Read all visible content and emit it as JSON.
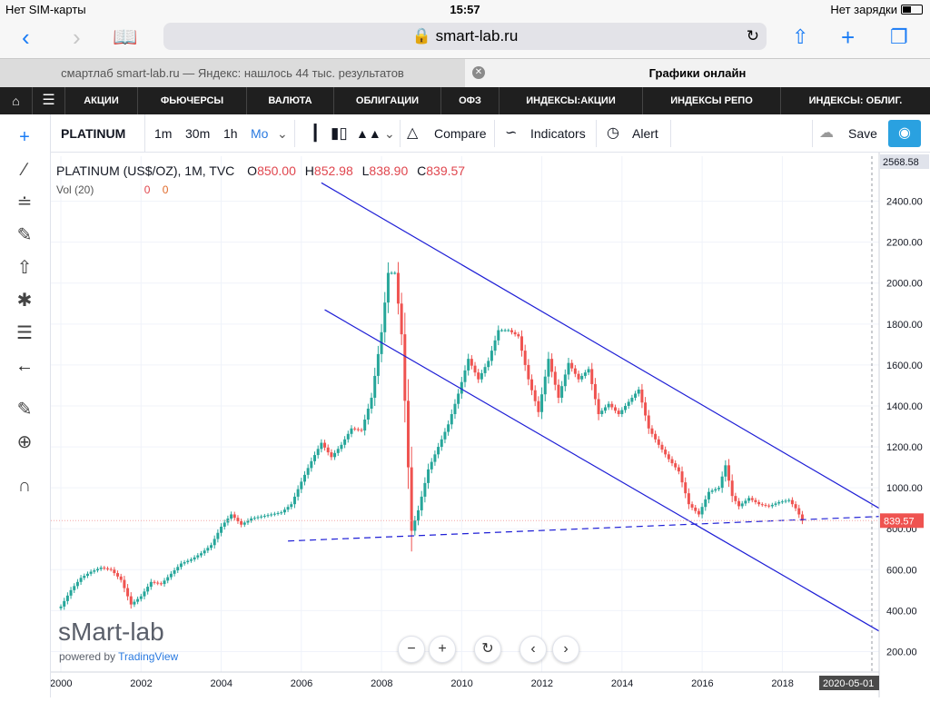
{
  "statusbar": {
    "carrier": "Нет SIM-карты",
    "time": "15:57",
    "battery": "Нет зарядки"
  },
  "browser": {
    "url": "smart-lab.ru"
  },
  "tabs": [
    {
      "label": "смартлаб smart-lab.ru — Яндекс: нашлось 44 тыс. результатов"
    },
    {
      "label": "Графики онлайн"
    }
  ],
  "sitenav": [
    "АКЦИИ",
    "ФЬЮЧЕРСЫ",
    "ВАЛЮТА",
    "ОБЛИГАЦИИ",
    "ОФЗ",
    "ИНДЕКСЫ:АКЦИИ",
    "ИНДЕКСЫ РЕПО",
    "ИНДЕКСЫ: ОБЛИГ."
  ],
  "tv_toolbar": {
    "symbol": "PLATINUM",
    "intervals": [
      "1m",
      "30m",
      "1h",
      "Mo"
    ],
    "active_interval": "Mo",
    "compare": "Compare",
    "indicators": "Indicators",
    "alert": "Alert",
    "save": "Save"
  },
  "legend": {
    "title": "PLATINUM (US$/OZ), 1M, TVC",
    "o_label": "O",
    "o": "850.00",
    "h_label": "H",
    "h": "852.98",
    "l_label": "L",
    "l": "838.90",
    "c_label": "C",
    "c": "839.57",
    "vol_label": "Vol (20)",
    "vol1": "0",
    "vol2": "0"
  },
  "watermark": {
    "brand": "sMart-lab",
    "powered": "powered by",
    "powered_link": "TradingView"
  },
  "colors": {
    "up": "#26a69a",
    "down": "#ef5350",
    "trend": "#1f1fd6",
    "price_tag": "#ef5350",
    "accent": "#2aa1e0"
  },
  "chart_data": {
    "type": "candlestick",
    "title": "PLATINUM (US$/OZ), 1M, TVC",
    "x_range": [
      "1999-10-01",
      "2020-06-01"
    ],
    "ylim": [
      100,
      2620
    ],
    "y_ticks": [
      200,
      400,
      600,
      800,
      1000,
      1200,
      1400,
      1600,
      1800,
      2000,
      2200,
      2400
    ],
    "x_ticks": [
      "2000",
      "2002",
      "2004",
      "2006",
      "2008",
      "2010",
      "2012",
      "2014",
      "2016",
      "2018"
    ],
    "y_tick_labels": [
      "200.00",
      "400.00",
      "600.00",
      "800.00",
      "1000.00",
      "1200.00",
      "1400.00",
      "1600.00",
      "1800.00",
      "2000.00",
      "2200.00",
      "2400.00"
    ],
    "last_price": "839.57",
    "top_price_label": "2568.58",
    "cursor_date_label": "2020-05-01",
    "series_closes": [
      [
        "2000-01",
        420
      ],
      [
        "2000-04",
        500
      ],
      [
        "2000-07",
        560
      ],
      [
        "2000-10",
        590
      ],
      [
        "2001-01",
        610
      ],
      [
        "2001-04",
        600
      ],
      [
        "2001-07",
        550
      ],
      [
        "2001-10",
        430
      ],
      [
        "2002-01",
        470
      ],
      [
        "2002-04",
        540
      ],
      [
        "2002-07",
        530
      ],
      [
        "2002-10",
        580
      ],
      [
        "2003-01",
        630
      ],
      [
        "2003-04",
        650
      ],
      [
        "2003-07",
        680
      ],
      [
        "2003-10",
        720
      ],
      [
        "2004-01",
        810
      ],
      [
        "2004-04",
        870
      ],
      [
        "2004-07",
        820
      ],
      [
        "2004-10",
        850
      ],
      [
        "2005-01",
        860
      ],
      [
        "2005-04",
        870
      ],
      [
        "2005-07",
        880
      ],
      [
        "2005-10",
        920
      ],
      [
        "2006-01",
        1030
      ],
      [
        "2006-04",
        1130
      ],
      [
        "2006-07",
        1220
      ],
      [
        "2006-10",
        1150
      ],
      [
        "2007-01",
        1210
      ],
      [
        "2007-04",
        1290
      ],
      [
        "2007-07",
        1280
      ],
      [
        "2007-10",
        1440
      ],
      [
        "2008-01",
        1760
      ],
      [
        "2008-03",
        2050
      ],
      [
        "2008-05",
        2050
      ],
      [
        "2008-07",
        1750
      ],
      [
        "2008-09",
        1100
      ],
      [
        "2008-10",
        790
      ],
      [
        "2008-12",
        890
      ],
      [
        "2009-03",
        1090
      ],
      [
        "2009-06",
        1200
      ],
      [
        "2009-09",
        1310
      ],
      [
        "2009-12",
        1460
      ],
      [
        "2010-03",
        1630
      ],
      [
        "2010-06",
        1530
      ],
      [
        "2010-09",
        1620
      ],
      [
        "2010-12",
        1770
      ],
      [
        "2011-03",
        1770
      ],
      [
        "2011-06",
        1740
      ],
      [
        "2011-09",
        1530
      ],
      [
        "2011-12",
        1370
      ],
      [
        "2012-03",
        1630
      ],
      [
        "2012-06",
        1440
      ],
      [
        "2012-09",
        1610
      ],
      [
        "2012-12",
        1530
      ],
      [
        "2013-03",
        1580
      ],
      [
        "2013-06",
        1360
      ],
      [
        "2013-09",
        1410
      ],
      [
        "2013-12",
        1360
      ],
      [
        "2014-03",
        1420
      ],
      [
        "2014-06",
        1480
      ],
      [
        "2014-09",
        1290
      ],
      [
        "2014-12",
        1210
      ],
      [
        "2015-03",
        1140
      ],
      [
        "2015-06",
        1080
      ],
      [
        "2015-09",
        920
      ],
      [
        "2015-12",
        870
      ],
      [
        "2016-03",
        980
      ],
      [
        "2016-06",
        1000
      ],
      [
        "2016-08",
        1110
      ],
      [
        "2016-10",
        960
      ],
      [
        "2016-12",
        910
      ],
      [
        "2017-03",
        950
      ],
      [
        "2017-06",
        920
      ],
      [
        "2017-09",
        910
      ],
      [
        "2017-12",
        930
      ],
      [
        "2018-03",
        940
      ],
      [
        "2018-05",
        900
      ],
      [
        "2018-07",
        839.57
      ]
    ],
    "trendlines": [
      {
        "style": "solid",
        "from": [
          "2006-07",
          2490
        ],
        "to": [
          "2020-06",
          900
        ]
      },
      {
        "style": "solid",
        "from": [
          "2006-08",
          1870
        ],
        "to": [
          "2020-06",
          300
        ]
      },
      {
        "style": "dashed",
        "from": [
          "2005-09",
          740
        ],
        "to": [
          "2020-06",
          860
        ]
      }
    ]
  }
}
